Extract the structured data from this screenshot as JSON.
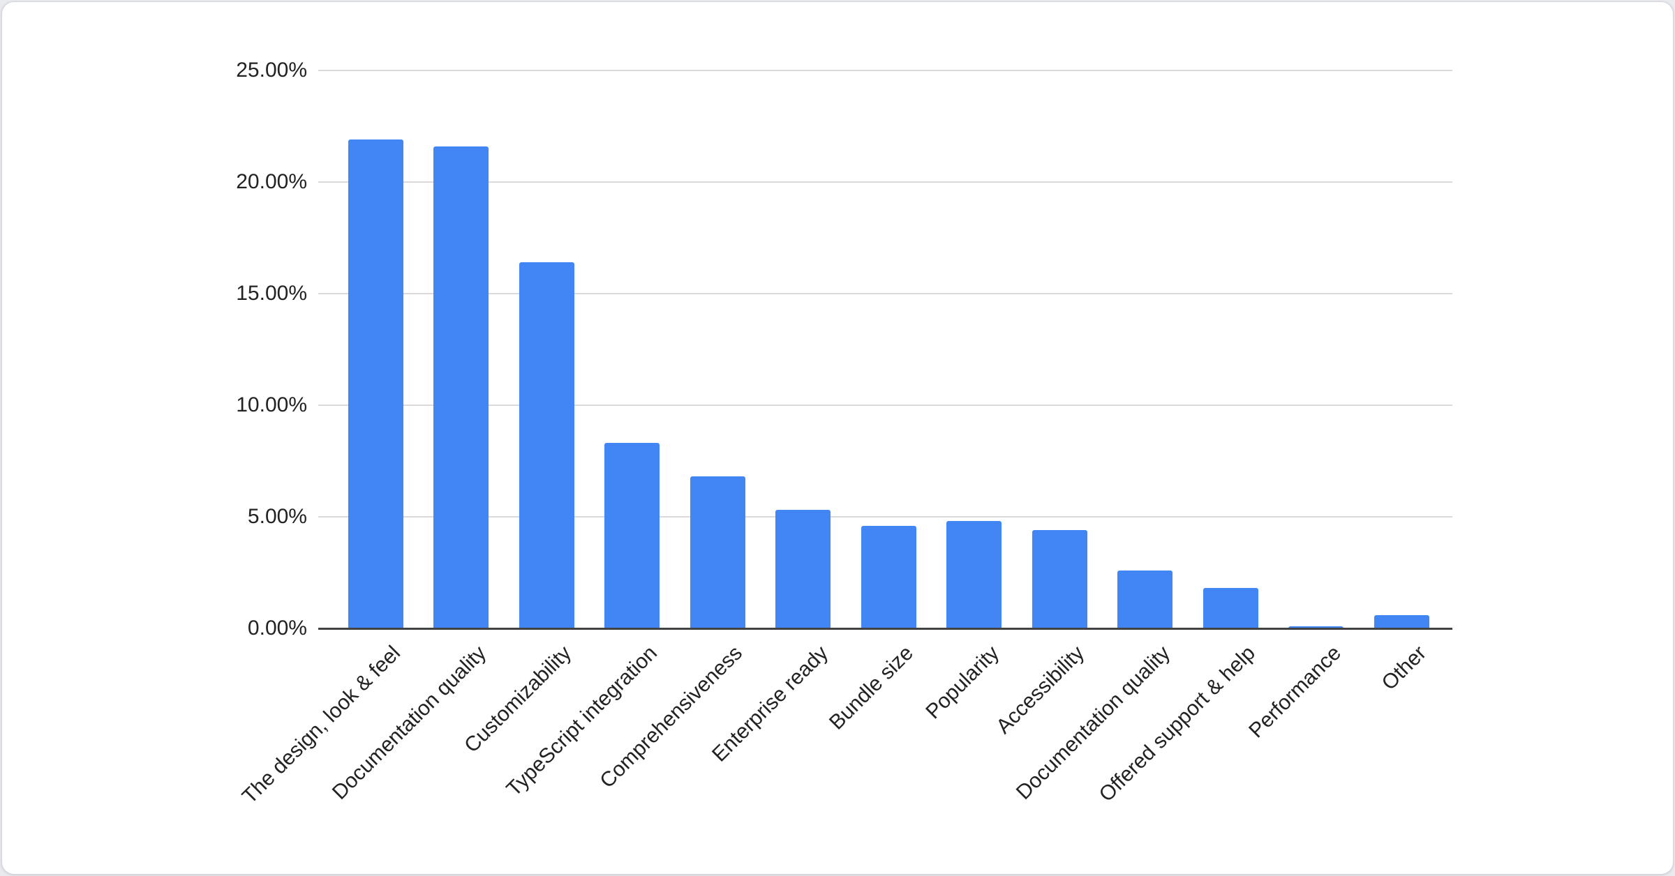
{
  "chart_data": {
    "type": "bar",
    "title": "",
    "xlabel": "",
    "ylabel": "",
    "categories": [
      "The design, look & feel",
      "Documentation quality",
      "Customizability",
      "TypeScript integration",
      "Comprehensiveness",
      "Enterprise ready",
      "Bundle size",
      "Popularity",
      "Accessibility",
      "Documentation quality",
      "Offered support & help",
      "Performance",
      "Other"
    ],
    "values": [
      21.9,
      21.6,
      16.4,
      8.3,
      6.8,
      5.3,
      4.6,
      4.8,
      4.4,
      2.6,
      1.8,
      0.1,
      0.6
    ],
    "value_unit": "percent",
    "ylim": [
      0,
      25
    ],
    "y_tick_step": 5,
    "y_tick_labels": [
      "0.00%",
      "5.00%",
      "10.00%",
      "15.00%",
      "20.00%",
      "25.00%"
    ],
    "x_label_rotation_deg": 45,
    "grid": true,
    "legend": "none",
    "colors": {
      "bar": "#4285f4",
      "gridline": "#d9d9d9",
      "baseline": "#424242",
      "axis_text": "#222222",
      "card_background": "#ffffff",
      "card_border": "#d3d6da"
    }
  }
}
